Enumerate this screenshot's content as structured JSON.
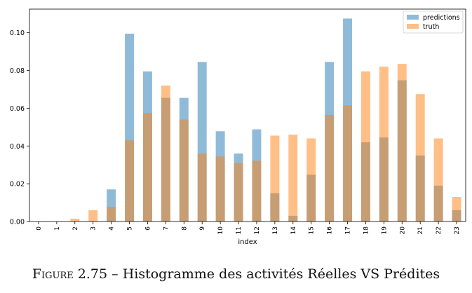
{
  "chart_data": {
    "type": "bar",
    "overlay": true,
    "categories": [
      "0",
      "1",
      "2",
      "3",
      "4",
      "5",
      "6",
      "7",
      "8",
      "9",
      "10",
      "11",
      "12",
      "13",
      "14",
      "15",
      "16",
      "17",
      "18",
      "19",
      "20",
      "21",
      "22",
      "23"
    ],
    "xlabel": "index",
    "ylabel": "",
    "ylim": [
      0,
      0.1125
    ],
    "yticks": [
      "0.00",
      "0.02",
      "0.04",
      "0.06",
      "0.08",
      "0.10"
    ],
    "grid": false,
    "legend_position": "top-right",
    "series": [
      {
        "name": "predictions",
        "color": "#1f77b4",
        "opacity": 0.5,
        "values": [
          0,
          0,
          0,
          0,
          0.017,
          0.0995,
          0.0795,
          0.0655,
          0.0655,
          0.0845,
          0.0478,
          0.036,
          0.0488,
          0.015,
          0.003,
          0.0248,
          0.0845,
          0.1075,
          0.042,
          0.0445,
          0.0748,
          0.035,
          0.019,
          0.006
        ]
      },
      {
        "name": "truth",
        "color": "#ff7f0e",
        "opacity": 0.5,
        "values": [
          0,
          0,
          0.0015,
          0.006,
          0.0078,
          0.043,
          0.0575,
          0.072,
          0.054,
          0.036,
          0.0345,
          0.031,
          0.0322,
          0.0455,
          0.046,
          0.044,
          0.0565,
          0.0615,
          0.0795,
          0.082,
          0.0835,
          0.0675,
          0.044,
          0.013
        ]
      }
    ]
  },
  "caption": {
    "label": "Figure 2.75",
    "dash": "–",
    "text": "Histogramme des activités Réelles VS Prédites"
  }
}
